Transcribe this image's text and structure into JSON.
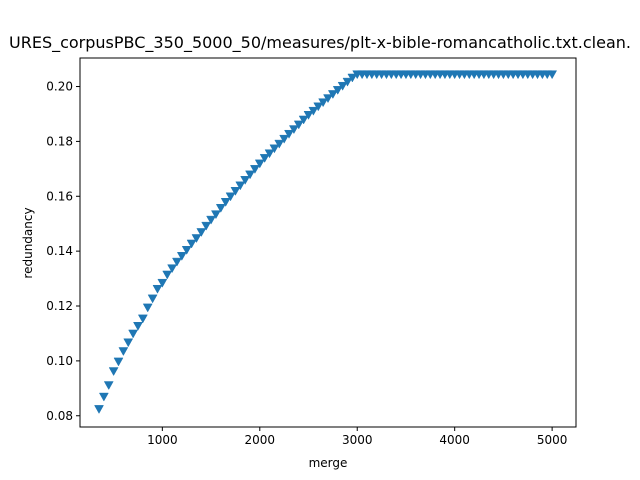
{
  "chart_data": {
    "type": "scatter",
    "title": "URES_corpusPBC_350_5000_50/measures/plt-x-bible-romancatholic.txt.clean.",
    "xlabel": "merge",
    "ylabel": "redundancy",
    "xlim": [
      155,
      5245
    ],
    "ylim": [
      0.0759,
      0.2104
    ],
    "xticks": [
      1000,
      2000,
      3000,
      4000,
      5000
    ],
    "yticks": [
      0.08,
      0.1,
      0.12,
      0.14,
      0.16,
      0.18,
      0.2
    ],
    "ytick_labels": [
      "0.08",
      "0.10",
      "0.12",
      "0.14",
      "0.16",
      "0.18",
      "0.20"
    ],
    "marker": "triangle-down",
    "color": "#1f77b4",
    "grid": false,
    "series": [
      {
        "x": [
          350,
          400,
          450,
          500,
          550,
          600,
          650,
          700,
          750,
          800,
          850,
          900,
          950,
          1000,
          1050,
          1100,
          1150,
          1200,
          1250,
          1300,
          1350,
          1400,
          1450,
          1500,
          1550,
          1600,
          1650,
          1700,
          1750,
          1800,
          1850,
          1900,
          1950,
          2000,
          2050,
          2100,
          2150,
          2200,
          2250,
          2300,
          2350,
          2400,
          2450,
          2500,
          2550,
          2600,
          2650,
          2700,
          2750,
          2800,
          2850,
          2900,
          2950,
          3000,
          3050,
          3100,
          3150,
          3200,
          3250,
          3300,
          3350,
          3400,
          3450,
          3500,
          3550,
          3600,
          3650,
          3700,
          3750,
          3800,
          3850,
          3900,
          3950,
          4000,
          4050,
          4100,
          4150,
          4200,
          4250,
          4300,
          4350,
          4400,
          4450,
          4500,
          4550,
          4600,
          4650,
          4700,
          4750,
          4800,
          4850,
          4900,
          4950,
          5000
        ],
        "y": [
          0.0825,
          0.087,
          0.0912,
          0.0963,
          0.0998,
          0.1036,
          0.1068,
          0.11,
          0.1128,
          0.1155,
          0.1195,
          0.1228,
          0.1263,
          0.1285,
          0.1315,
          0.1338,
          0.1362,
          0.1383,
          0.1405,
          0.1428,
          0.1448,
          0.147,
          0.1493,
          0.1515,
          0.1535,
          0.1558,
          0.158,
          0.16,
          0.162,
          0.164,
          0.166,
          0.168,
          0.17,
          0.172,
          0.174,
          0.1757,
          0.1775,
          0.1792,
          0.181,
          0.1828,
          0.1845,
          0.1862,
          0.188,
          0.1897,
          0.1912,
          0.1928,
          0.1943,
          0.1958,
          0.1973,
          0.1988,
          0.2003,
          0.2018,
          0.2033,
          0.2045,
          0.2045,
          0.2045,
          0.2045,
          0.2045,
          0.2045,
          0.2045,
          0.2045,
          0.2045,
          0.2045,
          0.2045,
          0.2045,
          0.2045,
          0.2045,
          0.2045,
          0.2045,
          0.2045,
          0.2045,
          0.2045,
          0.2045,
          0.2045,
          0.2045,
          0.2045,
          0.2045,
          0.2045,
          0.2045,
          0.2045,
          0.2045,
          0.2045,
          0.2045,
          0.2045,
          0.2045,
          0.2045,
          0.2045,
          0.2045,
          0.2045,
          0.2045,
          0.2045,
          0.2045,
          0.2045,
          0.2045
        ]
      }
    ]
  }
}
